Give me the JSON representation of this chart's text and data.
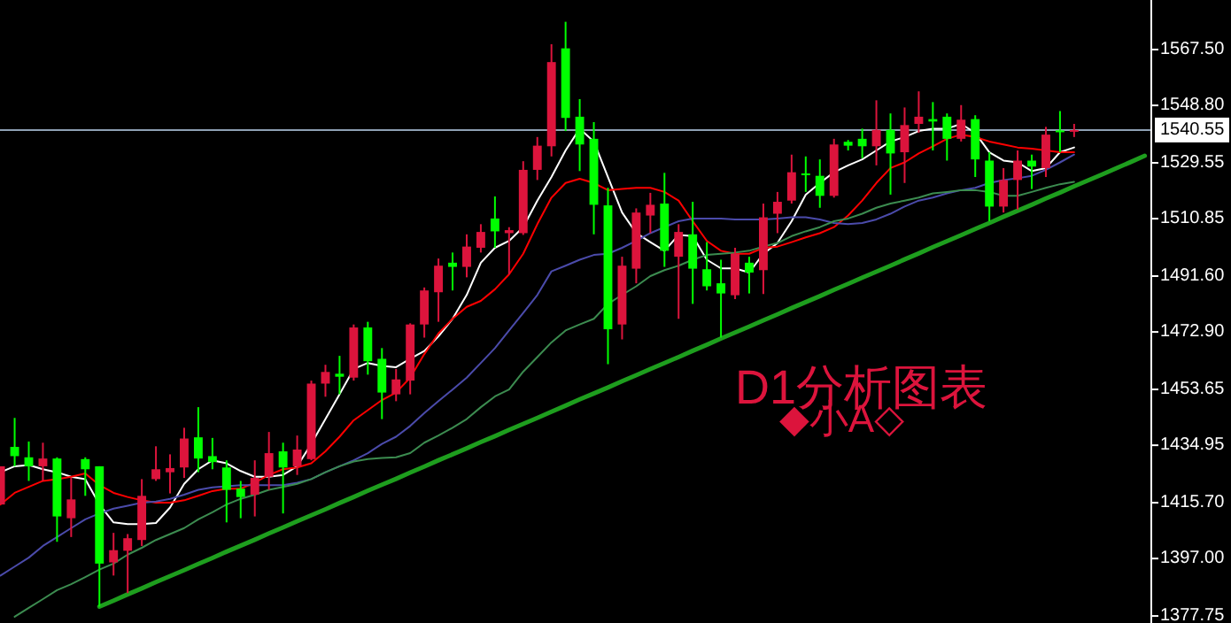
{
  "chart_data": {
    "type": "candlestick",
    "categories": [
      null,
      null,
      null,
      null,
      null,
      null,
      null,
      null,
      null,
      null,
      null,
      null,
      null,
      null,
      null,
      null,
      null,
      null,
      null,
      null,
      null,
      null,
      null,
      null,
      null,
      null,
      null,
      null,
      null,
      null,
      null,
      null,
      null,
      null,
      null,
      null,
      null,
      null,
      null,
      null,
      null,
      null,
      null,
      null,
      null,
      null,
      null,
      null,
      null,
      null,
      null,
      null,
      null,
      null,
      null,
      null,
      null,
      null,
      null,
      null,
      null,
      null,
      null,
      null,
      null,
      null,
      null,
      null,
      null,
      null,
      null,
      null,
      null,
      null,
      null,
      null,
      null,
      null,
      null,
      null,
      null,
      null
    ],
    "ohlc": [
      [
        1415.1,
        1427.9,
        1415.1,
        1427.9
      ],
      [
        1434.4,
        1444.1,
        1427.9,
        1431.3
      ],
      [
        1430.9,
        1436.2,
        1423.0,
        1427.9
      ],
      [
        1427.9,
        1435.8,
        1423.0,
        1430.5
      ],
      [
        1430.5,
        1430.9,
        1402.6,
        1411.1
      ],
      [
        1410.5,
        1424.0,
        1404.2,
        1416.8
      ],
      [
        1430.3,
        1430.9,
        1418.0,
        1426.9
      ],
      [
        1427.9,
        1427.9,
        1380.9,
        1395.3
      ],
      [
        1395.7,
        1405.6,
        1391.3,
        1399.8
      ],
      [
        1399.6,
        1405.2,
        1385.4,
        1403.8
      ],
      [
        1403.2,
        1423.6,
        1401.2,
        1418.0
      ],
      [
        1423.6,
        1434.6,
        1423.0,
        1426.9
      ],
      [
        1425.9,
        1431.9,
        1418.8,
        1427.3
      ],
      [
        1427.5,
        1440.8,
        1424.0,
        1437.2
      ],
      [
        1437.6,
        1447.7,
        1425.9,
        1430.5
      ],
      [
        1431.3,
        1437.4,
        1426.9,
        1429.3
      ],
      [
        1427.5,
        1429.9,
        1409.1,
        1420.0
      ],
      [
        1420.4,
        1423.0,
        1410.5,
        1417.6
      ],
      [
        1418.4,
        1429.9,
        1411.1,
        1424.0
      ],
      [
        1424.4,
        1439.4,
        1420.0,
        1432.3
      ],
      [
        1432.9,
        1435.8,
        1412.1,
        1427.5
      ],
      [
        1427.9,
        1438.2,
        1425.0,
        1433.5
      ],
      [
        1430.3,
        1456.6,
        1429.9,
        1455.6
      ],
      [
        1455.6,
        1461.9,
        1451.2,
        1459.5
      ],
      [
        1458.9,
        1464.9,
        1452.0,
        1457.9
      ],
      [
        1457.6,
        1475.4,
        1456.6,
        1474.4
      ],
      [
        1474.4,
        1476.3,
        1458.6,
        1463.1
      ],
      [
        1463.9,
        1467.5,
        1443.7,
        1452.6
      ],
      [
        1452.0,
        1460.5,
        1449.7,
        1457.0
      ],
      [
        1456.6,
        1475.8,
        1452.0,
        1475.4
      ],
      [
        1475.4,
        1487.8,
        1471.0,
        1486.8
      ],
      [
        1486.2,
        1497.5,
        1476.3,
        1495.1
      ],
      [
        1496.1,
        1499.5,
        1486.8,
        1494.7
      ],
      [
        1494.7,
        1505.6,
        1491.2,
        1501.5
      ],
      [
        1501.1,
        1509.0,
        1499.5,
        1506.4
      ],
      [
        1510.9,
        1518.3,
        1501.1,
        1506.6
      ],
      [
        1506.0,
        1508.0,
        1492.2,
        1507.0
      ],
      [
        1506.0,
        1530.1,
        1505.4,
        1527.2
      ],
      [
        1527.2,
        1538.2,
        1523.8,
        1535.3
      ],
      [
        1535.1,
        1569.3,
        1531.7,
        1563.3
      ],
      [
        1567.9,
        1576.8,
        1540.2,
        1544.6
      ],
      [
        1545.0,
        1550.9,
        1526.8,
        1535.7
      ],
      [
        1537.6,
        1543.2,
        1505.6,
        1515.5
      ],
      [
        1515.3,
        1521.2,
        1462.1,
        1473.8
      ],
      [
        1475.4,
        1498.1,
        1470.4,
        1495.1
      ],
      [
        1494.1,
        1514.3,
        1489.2,
        1512.9
      ],
      [
        1511.9,
        1519.5,
        1506.0,
        1515.5
      ],
      [
        1515.9,
        1526.2,
        1494.7,
        1500.1
      ],
      [
        1498.1,
        1509.0,
        1477.3,
        1506.4
      ],
      [
        1505.6,
        1516.5,
        1482.3,
        1494.1
      ],
      [
        1493.9,
        1503.0,
        1486.8,
        1488.2
      ],
      [
        1489.2,
        1497.1,
        1471.0,
        1485.8
      ],
      [
        1485.2,
        1501.1,
        1483.9,
        1499.1
      ],
      [
        1496.1,
        1498.1,
        1485.8,
        1492.8
      ],
      [
        1493.6,
        1515.9,
        1485.6,
        1511.3
      ],
      [
        1512.5,
        1519.8,
        1506.0,
        1516.5
      ],
      [
        1516.9,
        1532.3,
        1515.9,
        1526.4
      ],
      [
        1526.0,
        1531.7,
        1519.8,
        1525.6
      ],
      [
        1525.2,
        1530.7,
        1514.5,
        1518.5
      ],
      [
        1518.5,
        1537.6,
        1517.9,
        1535.7
      ],
      [
        1536.6,
        1537.2,
        1533.7,
        1535.3
      ],
      [
        1537.6,
        1541.0,
        1531.1,
        1535.1
      ],
      [
        1535.1,
        1550.5,
        1528.7,
        1540.6
      ],
      [
        1540.6,
        1546.1,
        1518.9,
        1532.7
      ],
      [
        1533.1,
        1548.1,
        1522.8,
        1542.2
      ],
      [
        1542.6,
        1553.5,
        1539.6,
        1545.0
      ],
      [
        1544.2,
        1549.9,
        1533.7,
        1543.4
      ],
      [
        1545.0,
        1546.1,
        1530.3,
        1537.6
      ],
      [
        1537.6,
        1548.9,
        1536.7,
        1544.0
      ],
      [
        1544.2,
        1545.5,
        1524.8,
        1530.7
      ],
      [
        1530.3,
        1533.1,
        1510.0,
        1514.9
      ],
      [
        1514.9,
        1527.8,
        1512.9,
        1523.8
      ],
      [
        1523.8,
        1533.7,
        1513.9,
        1530.3
      ],
      [
        1530.3,
        1532.3,
        1520.8,
        1528.3
      ],
      [
        1527.8,
        1541.6,
        1524.8,
        1539.0
      ],
      [
        1540.4,
        1546.9,
        1533.1,
        1540.0
      ],
      [
        1540.2,
        1542.6,
        1538.2,
        1540.55
      ],
      null,
      null,
      null,
      null,
      null
    ],
    "colors": [
      "#dc143c",
      "#00ff00",
      "#00ff00",
      "#dc143c",
      "#00ff00",
      "#dc143c",
      "#00ff00",
      "#00ff00",
      "#dc143c",
      "#dc143c",
      "#dc143c",
      "#dc143c",
      "#dc143c",
      "#dc143c",
      "#00ff00",
      "#00ff00",
      "#00ff00",
      "#00ff00",
      "#dc143c",
      "#dc143c",
      "#00ff00",
      "#dc143c",
      "#dc143c",
      "#dc143c",
      "#00ff00",
      "#dc143c",
      "#00ff00",
      "#00ff00",
      "#dc143c",
      "#dc143c",
      "#dc143c",
      "#dc143c",
      "#00ff00",
      "#dc143c",
      "#dc143c",
      "#00ff00",
      "#dc143c",
      "#dc143c",
      "#dc143c",
      "#dc143c",
      "#00ff00",
      "#00ff00",
      "#00ff00",
      "#00ff00",
      "#dc143c",
      "#dc143c",
      "#dc143c",
      "#00ff00",
      "#dc143c",
      "#00ff00",
      "#00ff00",
      "#00ff00",
      "#dc143c",
      "#00ff00",
      "#dc143c",
      "#dc143c",
      "#dc143c",
      "#00ff00",
      "#00ff00",
      "#dc143c",
      "#00ff00",
      "#00ff00",
      "#dc143c",
      "#00ff00",
      "#dc143c",
      "#dc143c",
      "#00ff00",
      "#00ff00",
      "#dc143c",
      "#00ff00",
      "#00ff00",
      "#dc143c",
      "#dc143c",
      "#00ff00",
      "#dc143c",
      "#00ff00",
      "#dc143c",
      null,
      null,
      null,
      null,
      null
    ],
    "series": [
      {
        "type": "line",
        "color": "#ffffff",
        "values": [
          1425.9,
          1427.9,
          1428.3,
          1426.9,
          1425.9,
          1424.4,
          1423.6,
          1415.1,
          1409.1,
          1408.5,
          1408.5,
          1408.9,
          1414.1,
          1422.0,
          1426.9,
          1429.9,
          1428.9,
          1426.3,
          1424.4,
          1424.4,
          1425.0,
          1427.9,
          1435.4,
          1443.7,
          1452.0,
          1460.5,
          1462.5,
          1461.5,
          1461.1,
          1463.9,
          1466.5,
          1471.4,
          1477.3,
          1485.3,
          1496.1,
          1501.1,
          1503.4,
          1508.0,
          1516.9,
          1524.8,
          1533.7,
          1541.0,
          1536.7,
          1524.8,
          1512.9,
          1506.0,
          1503.0,
          1500.1,
          1505.4,
          1505.0,
          1497.1,
          1494.2,
          1494.2,
          1492.8,
          1499.1,
          1502.7,
          1510.0,
          1518.9,
          1522.8,
          1526.4,
          1528.7,
          1530.7,
          1533.7,
          1536.7,
          1538.2,
          1540.2,
          1541.0,
          1541.0,
          1542.6,
          1539.6,
          1533.1,
          1530.3,
          1529.7,
          1526.8,
          1527.8,
          1533.1,
          1534.7,
          null,
          null,
          null,
          null,
          null
        ]
      },
      {
        "type": "line",
        "color": "#ff0000",
        "values": [
          1415.1,
          1419.0,
          1421.0,
          1423.0,
          1423.6,
          1424.4,
          1425.5,
          1421.6,
          1419.0,
          1417.6,
          1416.5,
          1415.7,
          1415.7,
          1416.5,
          1418.0,
          1419.6,
          1420.4,
          1420.4,
          1422.4,
          1425.0,
          1426.9,
          1427.5,
          1428.9,
          1432.9,
          1437.8,
          1443.3,
          1446.7,
          1450.1,
          1452.6,
          1457.6,
          1465.5,
          1472.4,
          1477.3,
          1481.3,
          1483.3,
          1487.2,
          1492.2,
          1499.1,
          1509.0,
          1517.9,
          1522.8,
          1524.2,
          1522.8,
          1520.4,
          1520.8,
          1521.2,
          1521.2,
          1519.8,
          1516.9,
          1510.0,
          1503.4,
          1500.1,
          1499.1,
          1499.1,
          1501.1,
          1501.5,
          1503.0,
          1504.6,
          1506.0,
          1508.0,
          1511.9,
          1516.9,
          1522.8,
          1527.8,
          1529.7,
          1532.7,
          1535.1,
          1537.6,
          1539.0,
          1538.2,
          1536.7,
          1535.7,
          1534.7,
          1534.3,
          1533.7,
          1533.1,
          1533.1,
          null,
          null,
          null,
          null,
          null
        ]
      },
      {
        "type": "line",
        "color": "#4b4bab",
        "values": [
          1391.3,
          1394.3,
          1397.3,
          1401.2,
          1404.2,
          1407.2,
          1410.1,
          1412.1,
          1413.7,
          1414.7,
          1415.7,
          1416.1,
          1417.0,
          1418.4,
          1420.0,
          1420.8,
          1421.2,
          1421.6,
          1421.6,
          1421.6,
          1421.6,
          1422.4,
          1423.6,
          1425.9,
          1427.9,
          1429.9,
          1432.3,
          1435.4,
          1437.8,
          1441.4,
          1445.7,
          1449.7,
          1453.6,
          1457.6,
          1462.5,
          1467.5,
          1473.4,
          1479.3,
          1485.3,
          1493.2,
          1495.1,
          1497.1,
          1498.7,
          1499.1,
          1501.1,
          1503.4,
          1506.0,
          1508.0,
          1510.0,
          1510.9,
          1510.9,
          1510.9,
          1510.6,
          1510.6,
          1510.6,
          1510.9,
          1511.3,
          1511.3,
          1510.6,
          1509.4,
          1509.0,
          1509.4,
          1510.6,
          1512.5,
          1514.9,
          1516.9,
          1517.9,
          1519.3,
          1520.4,
          1521.2,
          1522.8,
          1523.8,
          1524.4,
          1525.2,
          1527.2,
          1529.7,
          1532.3,
          null,
          null,
          null,
          null,
          null
        ]
      },
      {
        "type": "line",
        "color": "#3c8c50",
        "values": [
          null,
          1377.5,
          1380.5,
          1383.4,
          1386.4,
          1388.4,
          1390.8,
          1393.3,
          1395.3,
          1398.3,
          1400.6,
          1403.2,
          1405.2,
          1407.2,
          1410.1,
          1412.5,
          1415.1,
          1417.0,
          1418.4,
          1420.0,
          1421.0,
          1422.0,
          1423.6,
          1425.9,
          1427.9,
          1429.5,
          1430.3,
          1430.7,
          1430.9,
          1432.3,
          1435.8,
          1438.2,
          1440.8,
          1443.7,
          1447.7,
          1451.3,
          1453.6,
          1459.6,
          1464.5,
          1469.4,
          1473.4,
          1475.4,
          1477.3,
          1482.3,
          1485.3,
          1488.2,
          1491.6,
          1493.6,
          1495.1,
          1497.1,
          1498.7,
          1499.1,
          1499.5,
          1500.1,
          1501.5,
          1502.7,
          1505.0,
          1506.6,
          1508.0,
          1510.0,
          1510.9,
          1512.5,
          1514.5,
          1515.9,
          1516.9,
          1517.9,
          1519.3,
          1519.8,
          1520.4,
          1520.4,
          1519.8,
          1518.5,
          1518.5,
          1519.8,
          1521.2,
          1522.4,
          1523.2,
          null,
          null,
          null,
          null,
          null
        ]
      },
      {
        "type": "line",
        "color": "#1e9e1e",
        "values": [
          null,
          null,
          null,
          null,
          null,
          null,
          null,
          1380.9,
          1382.9,
          1385.0,
          1387.0,
          1389.1,
          1391.1,
          1393.1,
          1395.2,
          1397.2,
          1399.3,
          1401.3,
          1403.3,
          1405.4,
          1407.4,
          1409.5,
          1411.5,
          1413.5,
          1415.6,
          1417.6,
          1419.7,
          1421.7,
          1423.7,
          1425.8,
          1427.8,
          1429.9,
          1431.9,
          1433.9,
          1436.0,
          1438.0,
          1440.1,
          1442.1,
          1444.1,
          1446.2,
          1448.2,
          1450.3,
          1452.3,
          1454.3,
          1456.4,
          1458.4,
          1460.5,
          1462.5,
          1464.5,
          1466.6,
          1468.6,
          1470.7,
          1472.7,
          1474.7,
          1476.8,
          1478.8,
          1480.9,
          1482.9,
          1484.9,
          1487.0,
          1489.0,
          1491.1,
          1493.1,
          1495.1,
          1497.2,
          1499.2,
          1501.3,
          1503.3,
          1505.3,
          1507.4,
          1509.4,
          1511.5,
          1513.5,
          1515.5,
          1517.6,
          1519.6,
          1521.7,
          1523.7,
          1525.7,
          1527.8,
          1529.8,
          1531.9
        ]
      }
    ],
    "ylim": [
      1375.4,
      1584.1
    ],
    "yticks": [
      {
        "value": 1567.5,
        "label": "1567.50"
      },
      {
        "value": 1548.8,
        "label": "1548.80"
      },
      {
        "value": 1529.55,
        "label": "1529.55"
      },
      {
        "value": 1510.85,
        "label": "1510.85"
      },
      {
        "value": 1491.6,
        "label": "1491.60"
      },
      {
        "value": 1472.9,
        "label": "1472.90"
      },
      {
        "value": 1453.65,
        "label": "1453.65"
      },
      {
        "value": 1434.95,
        "label": "1434.95"
      },
      {
        "value": 1415.7,
        "label": "1415.70"
      },
      {
        "value": 1397.0,
        "label": "1397.00"
      },
      {
        "value": 1377.75,
        "label": "1377.75"
      }
    ],
    "ref_lines": [
      {
        "axis": "y",
        "value": 1540.55,
        "label": "1540.55",
        "color": "#8ea0b4"
      }
    ],
    "annotations": [
      "D1分析图表",
      "◆小A◇"
    ],
    "tick_labels": "y"
  }
}
